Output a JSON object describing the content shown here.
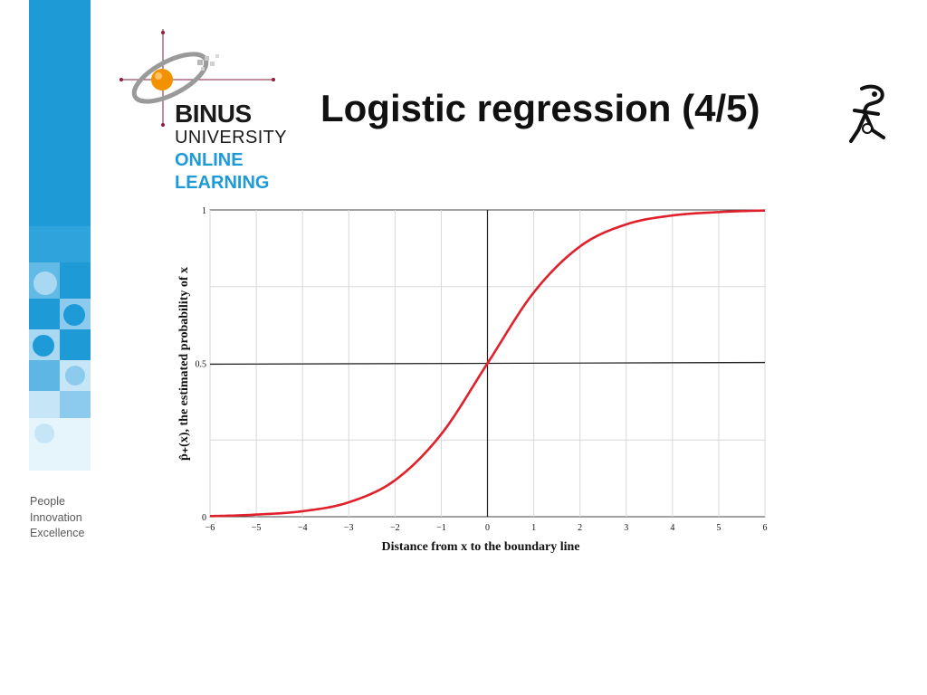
{
  "slide": {
    "title": "Logistic regression (4/5)",
    "decoration_icon": "thinking-figure-icon"
  },
  "logo": {
    "line1": "BINUS",
    "line2": "UNIVERSITY",
    "line3": "ONLINE",
    "line4": "LEARNING",
    "icon": "orange-planet-orbit-icon"
  },
  "tagline": [
    "People",
    "Innovation",
    "Excellence"
  ],
  "colors": {
    "brand_blue": "#1e9ad6",
    "brand_orange": "#f39200",
    "curve_red": "#e0202a"
  },
  "chart_data": {
    "type": "line",
    "xlabel": "Distance from x to the boundary line",
    "ylabel": "p̂₊(x), the estimated probability of x",
    "xlim": [
      -6,
      6
    ],
    "ylim": [
      0,
      1
    ],
    "xticks": [
      -6,
      -5,
      -4,
      -3,
      -2,
      -1,
      0,
      1,
      2,
      3,
      4,
      5,
      6
    ],
    "xtick_labels": [
      "−6",
      "−5",
      "−4",
      "−3",
      "−2",
      "−1",
      "0",
      "1",
      "2",
      "3",
      "4",
      "5",
      "6"
    ],
    "yticks": [
      0,
      0.5,
      1
    ],
    "ytick_labels": [
      "0",
      "0.5",
      "1"
    ],
    "grid": true,
    "reference_lines": [
      {
        "orientation": "horizontal",
        "value": 0.5
      },
      {
        "orientation": "vertical",
        "value": 0
      }
    ],
    "series": [
      {
        "x": [
          -6,
          -5,
          -4,
          -3,
          -2,
          -1,
          0,
          1,
          2,
          3,
          4,
          5,
          6
        ],
        "values": [
          0.002,
          0.007,
          0.018,
          0.047,
          0.119,
          0.269,
          0.5,
          0.731,
          0.881,
          0.953,
          0.982,
          0.993,
          0.998
        ]
      }
    ]
  }
}
